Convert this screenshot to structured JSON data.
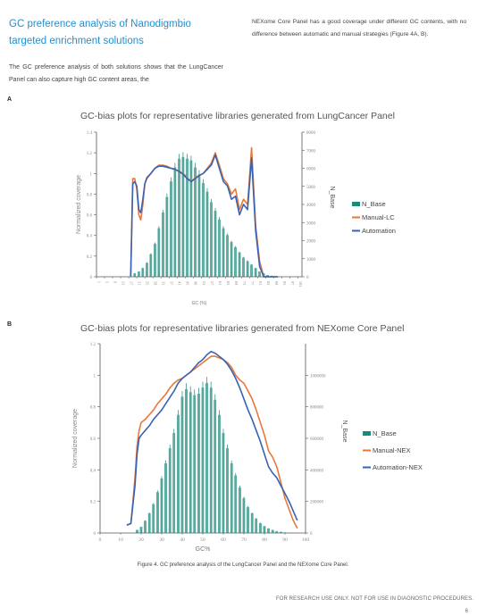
{
  "heading": "GC preference analysis of Nanodigmbio targeted enrichment solutions",
  "para_left": "The GC preference analysis of both solutions shows that the LungCancer Panel can also capture high GC content areas, the",
  "para_right": "NEXome Core Panel has a good coverage under different GC contents, with no difference between automatic and manual strategies (Figure 4A, B).",
  "label_a": "A",
  "label_b": "B",
  "caption": "Figure 4. GC preference analysis of the LungCancer Panel and the NEXome Core Panel.",
  "footer": "FOR RESEARCH USE ONLY. NOT FOR USE IN DIAGNOSTIC PROCEDURES.",
  "page_number": "6",
  "colors": {
    "heading": "#1f8fd0",
    "bar": "#1a8a7a",
    "manual": "#e8783a",
    "automation": "#3a62b4"
  },
  "chart_data": [
    {
      "type": "bar+line",
      "title": "GC-bias plots for representative libraries generated from LungCancer Panel",
      "xlabel": "GC (%)",
      "ylabel": "Normalized coverage",
      "y2label": "N_Base",
      "ylim": [
        0,
        1.4
      ],
      "y_ticks": [
        "0",
        "0.2",
        "0.4",
        "0.6",
        "0.8",
        "1",
        "1.2",
        "1.4"
      ],
      "y2lim": [
        0,
        8000
      ],
      "y2_ticks": [
        "0",
        "1000",
        "2000",
        "3000",
        "4000",
        "5000",
        "6000",
        "7000",
        "8000"
      ],
      "x_ticks": [
        "1",
        "5",
        "9",
        "13",
        "17",
        "21",
        "25",
        "29",
        "33",
        "37",
        "41",
        "45",
        "49",
        "53",
        "57",
        "61",
        "65",
        "69",
        "73",
        "77",
        "81",
        "85",
        "89",
        "93",
        "97",
        "101"
      ],
      "x_ticks_note": "x tick labels printed from 1 to 101 in steps of 4; label above 97 partially visible",
      "bars": {
        "name": "N_Base",
        "x": [
          20,
          22,
          24,
          26,
          28,
          30,
          32,
          34,
          36,
          38,
          40,
          42,
          44,
          46,
          48,
          50,
          52,
          54,
          56,
          58,
          60,
          62,
          64,
          66,
          68,
          70,
          72,
          74,
          76,
          78,
          80,
          82,
          84,
          86,
          88,
          90
        ],
        "values": [
          200,
          300,
          500,
          800,
          1300,
          1900,
          2800,
          3700,
          4600,
          5500,
          6300,
          6800,
          6900,
          6800,
          6700,
          6300,
          5900,
          5400,
          4900,
          4300,
          3800,
          3300,
          2800,
          2400,
          2000,
          1700,
          1400,
          1100,
          900,
          700,
          500,
          300,
          200,
          100,
          60,
          20
        ]
      },
      "series": [
        {
          "name": "Manual-LC",
          "x": [
            18,
            19,
            20,
            21,
            22,
            23,
            24,
            25,
            26,
            28,
            30,
            32,
            34,
            36,
            38,
            40,
            42,
            44,
            46,
            48,
            50,
            52,
            54,
            56,
            58,
            60,
            62,
            64,
            66,
            68,
            70,
            72,
            74,
            76,
            78,
            80,
            82,
            84,
            85,
            86,
            87,
            88,
            89,
            90,
            91
          ],
          "values": [
            0,
            0.95,
            0.95,
            0.85,
            0.6,
            0.55,
            0.7,
            0.9,
            0.95,
            1.0,
            1.05,
            1.08,
            1.08,
            1.07,
            1.05,
            1.04,
            1.02,
            1.0,
            0.96,
            0.92,
            0.96,
            0.98,
            1.0,
            1.05,
            1.1,
            1.2,
            1.08,
            0.95,
            0.9,
            0.8,
            0.85,
            0.65,
            0.75,
            0.7,
            1.25,
            0.5,
            0.15,
            0,
            0,
            0,
            0,
            0,
            0,
            0,
            0
          ]
        },
        {
          "name": "Automation",
          "x": [
            18,
            19,
            20,
            21,
            22,
            23,
            24,
            25,
            26,
            28,
            30,
            32,
            34,
            36,
            38,
            40,
            42,
            44,
            46,
            48,
            50,
            52,
            54,
            56,
            58,
            60,
            62,
            64,
            66,
            68,
            70,
            72,
            74,
            76,
            78,
            80,
            82,
            84,
            85,
            86,
            87,
            88,
            89,
            90,
            91
          ],
          "values": [
            0,
            0.9,
            0.92,
            0.88,
            0.65,
            0.62,
            0.75,
            0.9,
            0.96,
            1.0,
            1.05,
            1.07,
            1.07,
            1.06,
            1.05,
            1.04,
            1.02,
            0.99,
            0.95,
            0.92,
            0.95,
            0.98,
            1.0,
            1.04,
            1.08,
            1.18,
            1.05,
            0.92,
            0.88,
            0.75,
            0.78,
            0.6,
            0.7,
            0.65,
            1.15,
            0.45,
            0.1,
            0,
            0,
            0,
            0,
            0,
            0,
            0,
            0
          ]
        }
      ],
      "legend": [
        "N_Base",
        "Manual-LC",
        "Automation"
      ],
      "legend_position": "right"
    },
    {
      "type": "bar+line",
      "title": "GC-bias plots for representative libraries generated from NEXome Core Panel",
      "xlabel": "GC%",
      "ylabel": "Normalized coverage",
      "y2label": "N_Base",
      "xlim": [
        0,
        100
      ],
      "x_ticks": [
        "0",
        "10",
        "20",
        "30",
        "40",
        "50",
        "60",
        "70",
        "80",
        "90",
        "100"
      ],
      "ylim": [
        0,
        1.2
      ],
      "y_ticks": [
        "0",
        "0.2",
        "0.4",
        "0.6",
        "0.8",
        "1",
        "1.2"
      ],
      "y2lim": [
        0,
        1200000
      ],
      "y2_ticks": [
        "0",
        "200000",
        "400000",
        "600000",
        "800000",
        "1000000"
      ],
      "bars": {
        "name": "N_Base",
        "x": [
          18,
          20,
          22,
          24,
          26,
          28,
          30,
          32,
          34,
          36,
          38,
          40,
          42,
          44,
          46,
          48,
          50,
          52,
          54,
          56,
          58,
          60,
          62,
          64,
          66,
          68,
          70,
          72,
          74,
          76,
          78,
          80,
          82,
          84,
          86,
          88,
          90,
          92
        ],
        "values": [
          20000,
          40000,
          80000,
          130000,
          190000,
          270000,
          360000,
          460000,
          560000,
          660000,
          780000,
          900000,
          950000,
          930000,
          910000,
          920000,
          960000,
          990000,
          960000,
          880000,
          780000,
          660000,
          560000,
          460000,
          380000,
          300000,
          230000,
          170000,
          130000,
          95000,
          65000,
          45000,
          30000,
          20000,
          12000,
          8000,
          4000,
          2000
        ]
      },
      "series": [
        {
          "name": "Manual-NEX",
          "x": [
            13,
            15,
            16,
            17,
            18,
            19,
            20,
            22,
            24,
            26,
            28,
            30,
            32,
            34,
            36,
            38,
            40,
            42,
            44,
            46,
            48,
            50,
            52,
            54,
            56,
            58,
            60,
            62,
            64,
            66,
            68,
            70,
            72,
            74,
            76,
            78,
            80,
            82,
            84,
            86,
            88,
            90,
            92,
            94,
            96
          ],
          "values": [
            0.05,
            0.06,
            0.2,
            0.35,
            0.55,
            0.65,
            0.7,
            0.72,
            0.75,
            0.78,
            0.82,
            0.85,
            0.88,
            0.92,
            0.95,
            0.97,
            0.98,
            1.0,
            1.02,
            1.04,
            1.06,
            1.08,
            1.1,
            1.12,
            1.12,
            1.11,
            1.1,
            1.08,
            1.05,
            1.0,
            0.97,
            0.95,
            0.9,
            0.85,
            0.78,
            0.7,
            0.62,
            0.52,
            0.48,
            0.42,
            0.32,
            0.22,
            0.15,
            0.08,
            0.03
          ]
        },
        {
          "name": "Automation-NEX",
          "x": [
            13,
            15,
            16,
            17,
            18,
            19,
            20,
            22,
            24,
            26,
            28,
            30,
            32,
            34,
            36,
            38,
            40,
            42,
            44,
            46,
            48,
            50,
            52,
            54,
            56,
            58,
            60,
            62,
            64,
            66,
            68,
            70,
            72,
            74,
            76,
            78,
            80,
            82,
            84,
            86,
            88,
            90,
            92,
            94,
            96
          ],
          "values": [
            0.05,
            0.06,
            0.18,
            0.3,
            0.5,
            0.6,
            0.62,
            0.65,
            0.68,
            0.72,
            0.75,
            0.78,
            0.82,
            0.86,
            0.9,
            0.95,
            0.98,
            1.0,
            1.02,
            1.05,
            1.08,
            1.1,
            1.13,
            1.15,
            1.14,
            1.12,
            1.1,
            1.07,
            1.03,
            0.98,
            0.92,
            0.85,
            0.78,
            0.72,
            0.65,
            0.58,
            0.5,
            0.42,
            0.38,
            0.35,
            0.3,
            0.25,
            0.2,
            0.14,
            0.08
          ]
        }
      ],
      "legend": [
        "N_Base",
        "Manual-NEX",
        "Automation-NEX"
      ],
      "legend_position": "right"
    }
  ]
}
